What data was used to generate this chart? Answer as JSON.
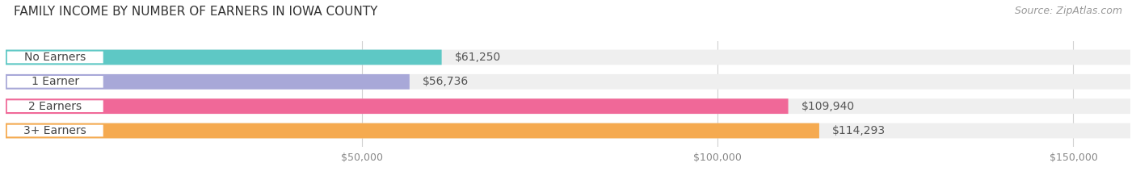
{
  "title": "FAMILY INCOME BY NUMBER OF EARNERS IN IOWA COUNTY",
  "source": "Source: ZipAtlas.com",
  "categories": [
    "No Earners",
    "1 Earner",
    "2 Earners",
    "3+ Earners"
  ],
  "values": [
    61250,
    56736,
    109940,
    114293
  ],
  "bar_colors": [
    "#5ec8c5",
    "#a8a8d8",
    "#f06898",
    "#f5aa50"
  ],
  "bar_labels": [
    "$61,250",
    "$56,736",
    "$109,940",
    "$114,293"
  ],
  "x_ticks": [
    50000,
    100000,
    150000
  ],
  "x_tick_labels": [
    "$50,000",
    "$100,000",
    "$150,000"
  ],
  "xlim": [
    0,
    158000
  ],
  "background_color": "#ffffff",
  "bar_bg_color": "#efefef",
  "pill_color": "#ffffff",
  "title_fontsize": 11,
  "source_fontsize": 9,
  "value_label_fontsize": 10,
  "category_fontsize": 10
}
